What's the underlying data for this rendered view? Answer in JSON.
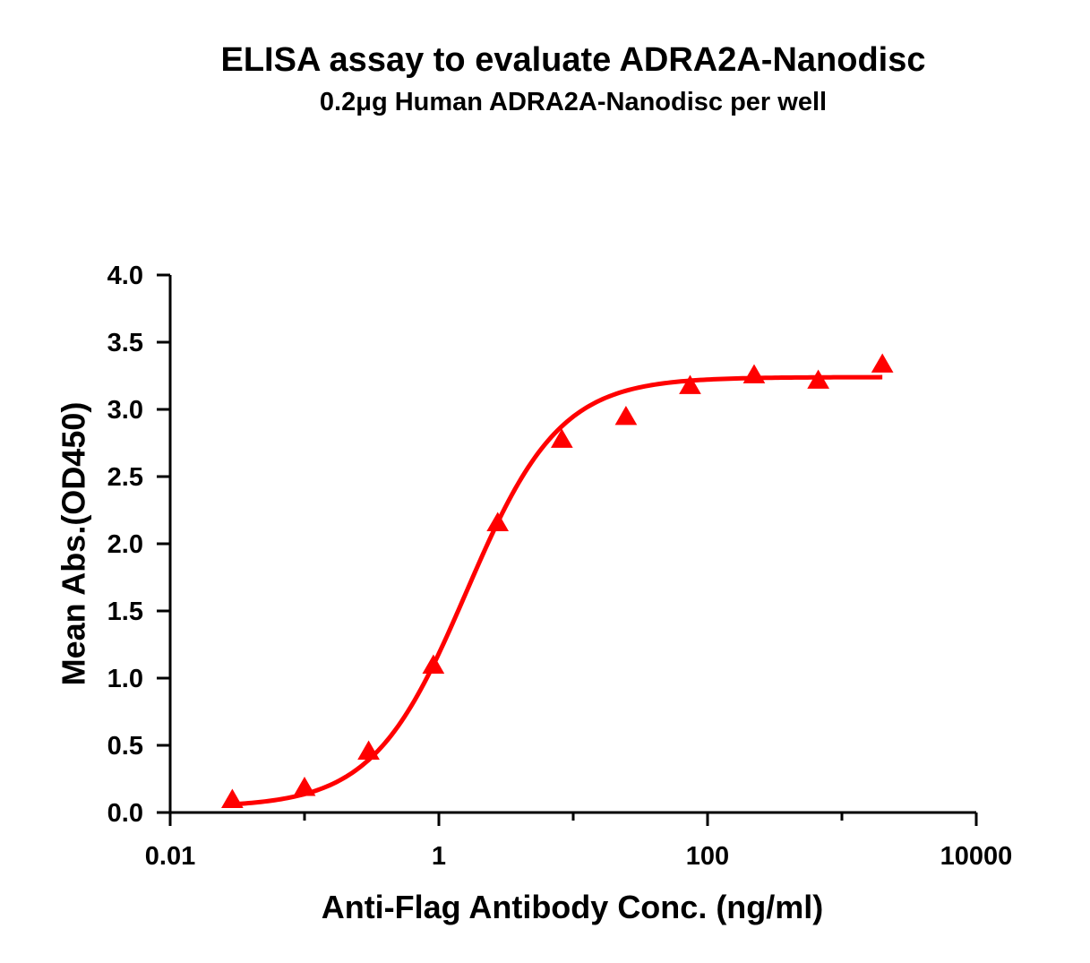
{
  "chart_data": {
    "type": "scatter",
    "title": "ELISA assay to evaluate ADRA2A-Nanodisc",
    "subtitle": "0.2μg Human ADRA2A-Nanodisc per well",
    "xlabel": "Anti-Flag Antibody Conc. (ng/ml)",
    "ylabel": "Mean Abs.(OD450)",
    "xscale": "log",
    "xlim": [
      0.01,
      10000
    ],
    "ylim": [
      0,
      4.0
    ],
    "x_ticks": [
      0.01,
      1,
      100,
      10000
    ],
    "x_tick_labels": [
      "0.01",
      "1",
      "100",
      "10000"
    ],
    "y_ticks": [
      0,
      0.5,
      1.0,
      1.5,
      2.0,
      2.5,
      3.0,
      3.5,
      4.0
    ],
    "y_tick_labels": [
      "0.0",
      "0.5",
      "1.0",
      "1.5",
      "2.0",
      "2.5",
      "3.0",
      "3.5",
      "4.0"
    ],
    "color": "#ff0000",
    "marker": "triangle",
    "series": [
      {
        "x": [
          0.029,
          0.1,
          0.3,
          0.91,
          2.74,
          8.23,
          24.7,
          74.1,
          222,
          667,
          2000
        ],
        "y": [
          0.09,
          0.18,
          0.45,
          1.09,
          2.15,
          2.77,
          2.94,
          3.17,
          3.25,
          3.21,
          3.33
        ]
      }
    ],
    "fit": {
      "type": "4PL",
      "bottom": 0.04,
      "top": 3.24,
      "ec50": 1.6,
      "hill": 1.25
    },
    "grid": false,
    "legend": "none"
  }
}
